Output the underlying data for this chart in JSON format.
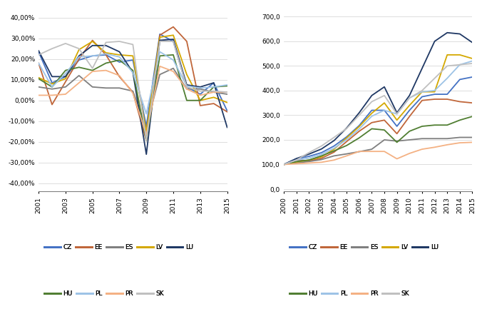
{
  "left_years": [
    2001,
    2002,
    2003,
    2004,
    2005,
    2006,
    2007,
    2008,
    2009,
    2010,
    2011,
    2012,
    2013,
    2014,
    2015
  ],
  "right_years": [
    2000,
    2001,
    2002,
    2003,
    2004,
    2005,
    2006,
    2007,
    2008,
    2009,
    2010,
    2011,
    2012,
    2013,
    2014,
    2015
  ],
  "left": {
    "CZ": [
      0.235,
      0.085,
      0.115,
      0.195,
      0.215,
      0.22,
      0.185,
      0.195,
      -0.125,
      0.32,
      0.285,
      0.065,
      0.03,
      0.085,
      -0.05
    ],
    "EE": [
      0.18,
      -0.02,
      0.09,
      0.2,
      0.29,
      0.22,
      0.115,
      0.04,
      -0.195,
      0.315,
      0.355,
      0.285,
      -0.025,
      -0.015,
      -0.055
    ],
    "ES": [
      0.065,
      0.055,
      0.065,
      0.12,
      0.065,
      0.06,
      0.06,
      0.045,
      -0.13,
      0.125,
      0.155,
      0.055,
      0.055,
      0.04,
      0.03
    ],
    "LV": [
      0.11,
      0.08,
      0.105,
      0.245,
      0.285,
      0.23,
      0.22,
      0.215,
      -0.155,
      0.305,
      0.315,
      0.125,
      0.0,
      0.015,
      -0.01
    ],
    "LU": [
      0.24,
      0.115,
      0.115,
      0.215,
      0.265,
      0.265,
      0.235,
      0.135,
      -0.26,
      0.29,
      0.295,
      0.075,
      0.065,
      0.085,
      -0.13
    ],
    "HU": [
      0.105,
      0.065,
      0.145,
      0.16,
      0.145,
      0.18,
      0.195,
      0.145,
      -0.195,
      0.215,
      0.22,
      0.0,
      0.0,
      0.065,
      0.07
    ],
    "PL": [
      0.18,
      0.065,
      0.13,
      0.21,
      0.215,
      0.225,
      0.21,
      0.135,
      -0.065,
      0.235,
      0.195,
      0.07,
      0.06,
      0.065,
      0.075
    ],
    "PR": [
      0.025,
      0.025,
      0.03,
      0.085,
      0.14,
      0.145,
      0.12,
      0.035,
      -0.165,
      0.165,
      0.14,
      0.055,
      0.025,
      0.04,
      0.04
    ],
    "SK": [
      0.22,
      0.25,
      0.275,
      0.25,
      0.155,
      0.28,
      0.285,
      0.27,
      -0.195,
      0.285,
      0.285,
      0.065,
      0.045,
      0.045,
      0.04
    ]
  },
  "right": {
    "CZ": [
      100,
      123,
      133,
      148,
      175,
      212,
      258,
      320,
      320,
      255,
      320,
      375,
      385,
      385,
      445,
      455
    ],
    "EE": [
      100,
      118,
      115,
      125,
      150,
      193,
      235,
      270,
      280,
      225,
      295,
      360,
      365,
      365,
      355,
      350
    ],
    "ES": [
      100,
      107,
      112,
      120,
      135,
      143,
      152,
      162,
      200,
      195,
      200,
      205,
      205,
      205,
      210,
      210
    ],
    "LV": [
      100,
      110,
      118,
      131,
      162,
      208,
      254,
      308,
      350,
      280,
      340,
      395,
      395,
      545,
      545,
      530
    ],
    "LU": [
      100,
      124,
      142,
      163,
      197,
      248,
      310,
      380,
      415,
      310,
      380,
      490,
      600,
      635,
      630,
      595
    ],
    "HU": [
      100,
      112,
      118,
      135,
      155,
      177,
      208,
      245,
      240,
      190,
      235,
      255,
      260,
      260,
      280,
      295
    ],
    "PL": [
      100,
      118,
      126,
      141,
      166,
      201,
      244,
      296,
      320,
      305,
      370,
      395,
      400,
      450,
      505,
      520
    ],
    "PR": [
      100,
      103,
      106,
      109,
      118,
      135,
      153,
      153,
      153,
      123,
      145,
      162,
      170,
      180,
      188,
      190
    ],
    "SK": [
      100,
      118,
      148,
      175,
      210,
      246,
      300,
      355,
      380,
      305,
      370,
      400,
      450,
      500,
      505,
      510
    ]
  },
  "colors": {
    "CZ": "#4472C4",
    "EE": "#C0663A",
    "ES": "#7F7F7F",
    "LV": "#D4A800",
    "LU": "#1F3864",
    "HU": "#507E32",
    "PL": "#9DC3E6",
    "PR": "#F4B183",
    "SK": "#C0C0C0"
  },
  "left_yticks": [
    -0.4,
    -0.3,
    -0.2,
    -0.1,
    0.0,
    0.1,
    0.2,
    0.3,
    0.4
  ],
  "left_ylim": [
    -0.44,
    0.44
  ],
  "right_yticks": [
    0,
    100,
    200,
    300,
    400,
    500,
    600,
    700
  ],
  "right_ylim": [
    -10,
    730
  ],
  "legend_order": [
    "CZ",
    "EE",
    "ES",
    "LV",
    "LU",
    "HU",
    "PL",
    "PR",
    "SK"
  ],
  "row1": [
    "CZ",
    "EE",
    "ES",
    "LV",
    "LU"
  ],
  "row2": [
    "HU",
    "PL",
    "PR",
    "SK"
  ],
  "linewidth": 1.3
}
